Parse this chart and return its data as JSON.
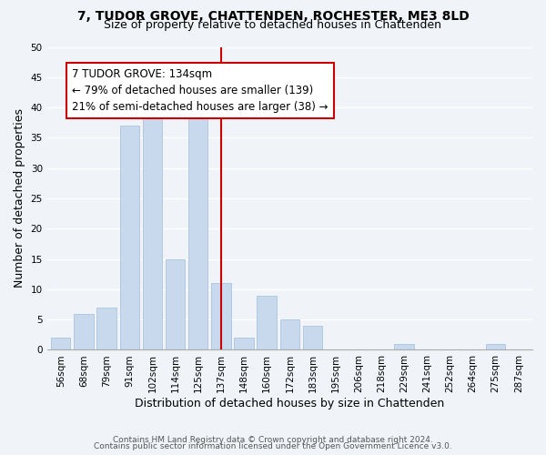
{
  "title": "7, TUDOR GROVE, CHATTENDEN, ROCHESTER, ME3 8LD",
  "subtitle": "Size of property relative to detached houses in Chattenden",
  "xlabel": "Distribution of detached houses by size in Chattenden",
  "ylabel": "Number of detached properties",
  "bar_labels": [
    "56sqm",
    "68sqm",
    "79sqm",
    "91sqm",
    "102sqm",
    "114sqm",
    "125sqm",
    "137sqm",
    "148sqm",
    "160sqm",
    "172sqm",
    "183sqm",
    "195sqm",
    "206sqm",
    "218sqm",
    "229sqm",
    "241sqm",
    "252sqm",
    "264sqm",
    "275sqm",
    "287sqm"
  ],
  "bar_values": [
    2,
    6,
    7,
    37,
    39,
    15,
    39,
    11,
    2,
    9,
    5,
    4,
    0,
    0,
    0,
    1,
    0,
    0,
    0,
    1,
    0
  ],
  "bar_color": "#c8d9ee",
  "bar_edge_color": "#aac4dc",
  "vline_x": 7,
  "vline_color": "#cc0000",
  "annotation_title": "7 TUDOR GROVE: 134sqm",
  "annotation_line1": "← 79% of detached houses are smaller (139)",
  "annotation_line2": "21% of semi-detached houses are larger (38) →",
  "annotation_box_color": "#ffffff",
  "annotation_box_edge": "#cc0000",
  "ylim": [
    0,
    50
  ],
  "yticks": [
    0,
    5,
    10,
    15,
    20,
    25,
    30,
    35,
    40,
    45,
    50
  ],
  "footnote1": "Contains HM Land Registry data © Crown copyright and database right 2024.",
  "footnote2": "Contains public sector information licensed under the Open Government Licence v3.0.",
  "bg_color": "#f0f4f8",
  "title_fontsize": 10,
  "subtitle_fontsize": 9,
  "axis_label_fontsize": 9,
  "tick_fontsize": 7.5,
  "annotation_fontsize": 8.5,
  "footnote_fontsize": 6.5
}
